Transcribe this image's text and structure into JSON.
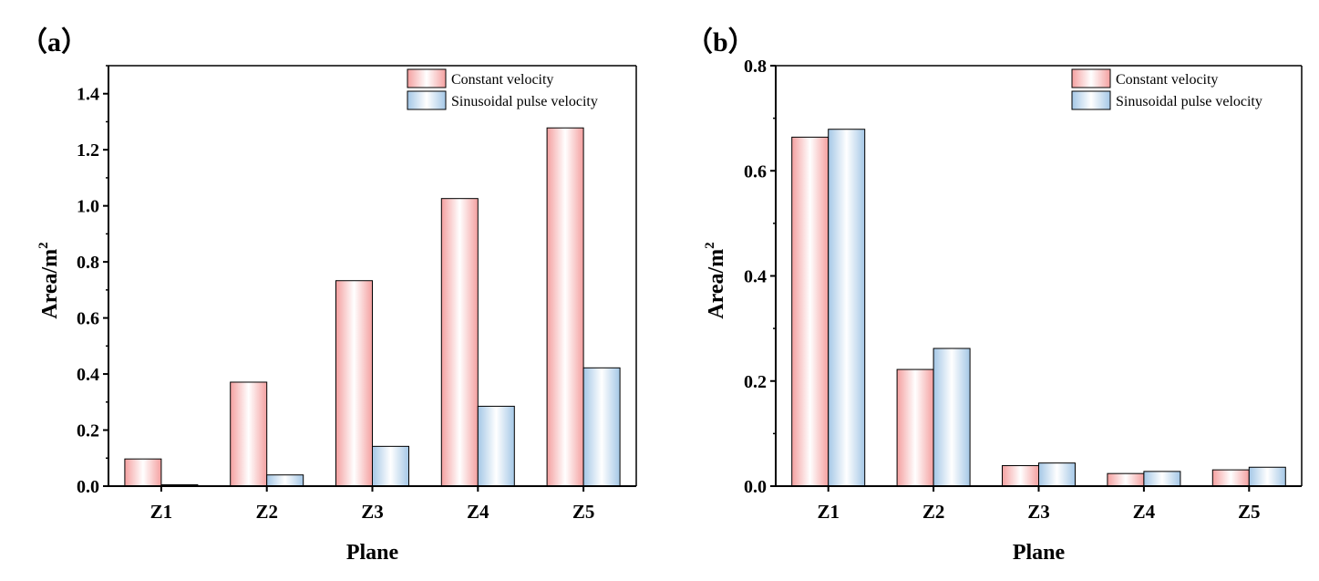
{
  "colors": {
    "constant_edge": "#f4a0a0",
    "constant_light": "#ffffff",
    "sinusoidal_edge": "#a4c7e6",
    "sinusoidal_light": "#ffffff",
    "axis": "#000000"
  },
  "chart_data": [
    {
      "type": "bar",
      "panel_label": "（a）",
      "title": "",
      "xlabel": "Plane",
      "ylabel": "Area/m",
      "ylabel_superscript": "2",
      "categories": [
        "Z1",
        "Z2",
        "Z3",
        "Z4",
        "Z5"
      ],
      "ylim": [
        0,
        1.5
      ],
      "yticks": [
        0.0,
        0.2,
        0.4,
        0.6,
        0.8,
        1.0,
        1.2,
        1.4
      ],
      "ytick_labels": [
        "0.0",
        "0.2",
        "0.4",
        "0.6",
        "0.8",
        "1.0",
        "1.2",
        "1.4"
      ],
      "legend_position": "top-right",
      "series": [
        {
          "name": "Constant velocity",
          "values": [
            0.097,
            0.371,
            0.733,
            1.026,
            1.278
          ]
        },
        {
          "name": "Sinusoidal pulse velocity",
          "values": [
            0.005,
            0.04,
            0.142,
            0.285,
            0.422
          ]
        }
      ]
    },
    {
      "type": "bar",
      "panel_label": "（b）",
      "title": "",
      "xlabel": "Plane",
      "ylabel": "Area/m",
      "ylabel_superscript": "2",
      "categories": [
        "Z1",
        "Z2",
        "Z3",
        "Z4",
        "Z5"
      ],
      "ylim": [
        0,
        0.8
      ],
      "yticks": [
        0.0,
        0.2,
        0.4,
        0.6,
        0.8
      ],
      "ytick_labels": [
        "0.0",
        "0.2",
        "0.4",
        "0.6",
        "0.8"
      ],
      "legend_position": "top-right",
      "series": [
        {
          "name": "Constant velocity",
          "values": [
            0.664,
            0.222,
            0.039,
            0.024,
            0.031
          ]
        },
        {
          "name": "Sinusoidal pulse velocity",
          "values": [
            0.679,
            0.262,
            0.044,
            0.028,
            0.036
          ]
        }
      ]
    }
  ]
}
